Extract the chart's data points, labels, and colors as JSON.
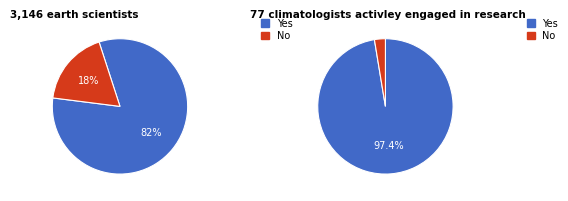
{
  "chart1_title": "3,146 earth scientists",
  "chart1_values": [
    82,
    18
  ],
  "chart1_labels": [
    "82%",
    "18%"
  ],
  "chart1_colors": [
    "#4169C8",
    "#D63A1A"
  ],
  "chart2_title": "77 climatologists activley engaged in research",
  "chart2_values": [
    97.4,
    2.6
  ],
  "chart2_labels": [
    "97.4%",
    ""
  ],
  "chart2_colors": [
    "#4169C8",
    "#D63A1A"
  ],
  "legend_labels": [
    "Yes",
    "No"
  ],
  "legend_colors": [
    "#4169C8",
    "#D63A1A"
  ],
  "background_color": "#ffffff",
  "title_fontsize": 7.5,
  "label_fontsize": 7,
  "legend_fontsize": 7,
  "chart1_startangle": 108,
  "chart2_startangle": 90
}
